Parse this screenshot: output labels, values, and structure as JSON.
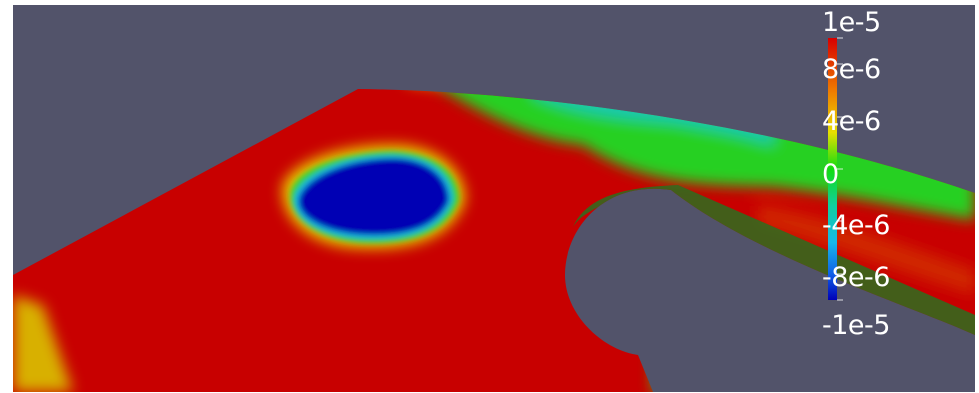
{
  "render_view": {
    "background_color": "#52536a",
    "field_colors": {
      "max": "#c80000",
      "high": "#e8d000",
      "mid": "#11d411",
      "low": "#16c8c8",
      "min": "#0000b4"
    }
  },
  "colorbar": {
    "range": [
      -1e-05,
      1e-05
    ],
    "labels": [
      "1e-5",
      "8e-6",
      "4e-6",
      "0",
      "-4e-6",
      "-8e-6",
      "-1e-5"
    ]
  }
}
